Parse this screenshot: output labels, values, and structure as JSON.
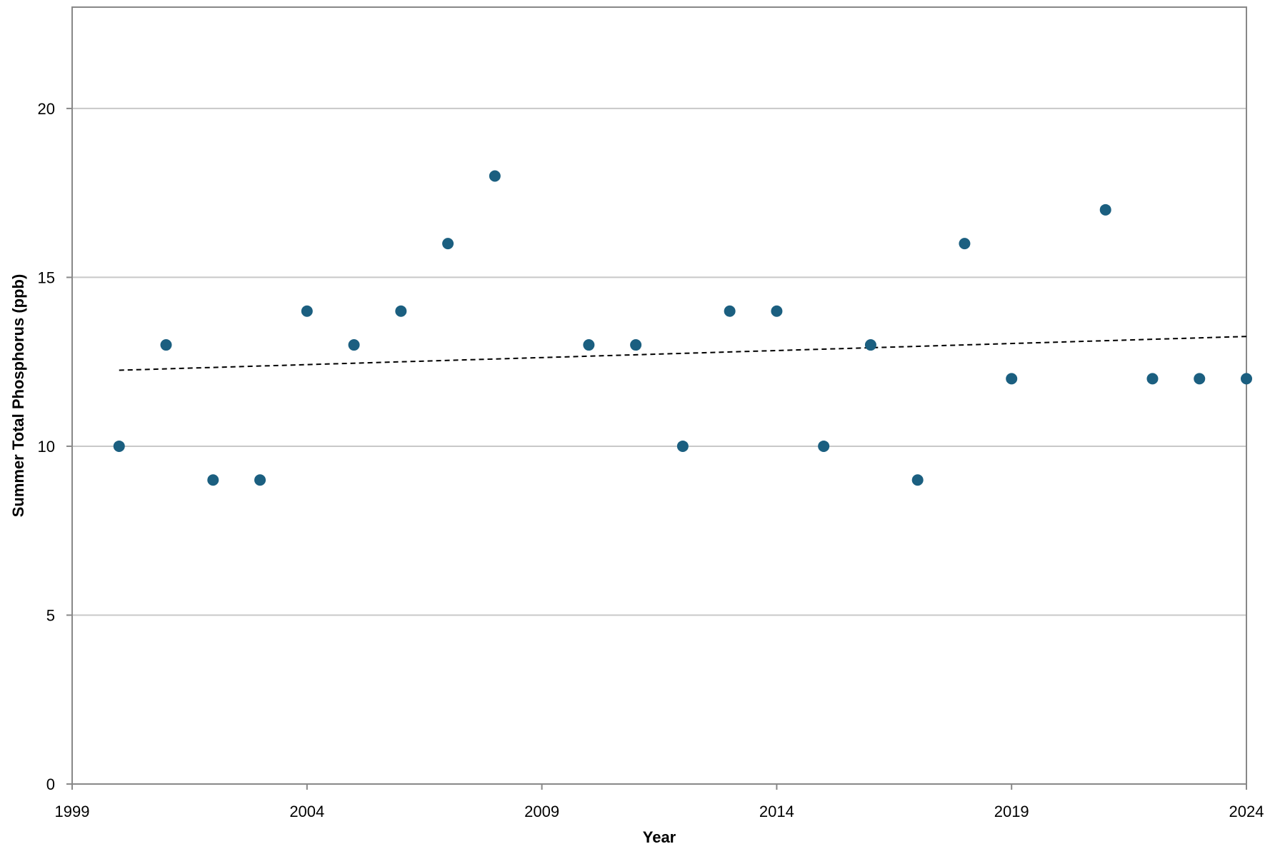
{
  "chart_data": {
    "type": "scatter",
    "title": "",
    "xlabel": "Year",
    "ylabel": "Summer Total Phosphorus (ppb)",
    "xlim": [
      1999,
      2024
    ],
    "ylim": [
      0,
      23
    ],
    "x_ticks": [
      1999,
      2004,
      2009,
      2014,
      2019,
      2024
    ],
    "y_ticks": [
      0,
      5,
      10,
      15,
      20
    ],
    "x_tick_labels": [
      "1999",
      "2004",
      "2009",
      "2014",
      "2019",
      "2024"
    ],
    "y_tick_labels": [
      "0",
      "5",
      "10",
      "15",
      "20"
    ],
    "grid": "horizontal",
    "legend": "none",
    "colors": {
      "marker": "#1b5f80",
      "trendline": "#000000",
      "grid": "#c8c8c8",
      "axis": "#888888"
    },
    "series": [
      {
        "x": [
          2000,
          2001,
          2002,
          2003,
          2004,
          2005,
          2006,
          2007,
          2008,
          2010,
          2011,
          2012,
          2013,
          2014,
          2015,
          2016,
          2017,
          2018,
          2019,
          2021,
          2022,
          2023,
          2024
        ],
        "y": [
          10,
          13,
          9,
          9,
          14,
          13,
          14,
          16,
          18,
          13,
          13,
          10,
          14,
          14,
          10,
          13,
          9,
          16,
          12,
          17,
          12,
          12,
          12
        ]
      }
    ],
    "trendline": {
      "style": "dashed",
      "x": [
        2000,
        2024
      ],
      "y": [
        12.25,
        13.25
      ]
    }
  }
}
